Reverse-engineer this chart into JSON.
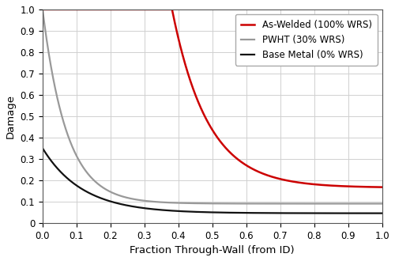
{
  "title": "",
  "xlabel": "Fraction Through-Wall (from ID)",
  "ylabel": "Damage",
  "xlim": [
    0.0,
    1.0
  ],
  "ylim": [
    0.0,
    1.0
  ],
  "xticks": [
    0.0,
    0.1,
    0.2,
    0.3,
    0.4,
    0.5,
    0.6,
    0.7,
    0.8,
    0.9,
    1.0
  ],
  "yticks": [
    0.0,
    0.1,
    0.2,
    0.3,
    0.4,
    0.5,
    0.6,
    0.7,
    0.8,
    0.9,
    1.0
  ],
  "lines": [
    {
      "label": "As-Welded (100% WRS)",
      "color": "#cc0000",
      "linewidth": 1.8,
      "type": "as_welded"
    },
    {
      "label": "PWHT (30% WRS)",
      "color": "#999999",
      "linewidth": 1.6,
      "type": "pwht"
    },
    {
      "label": "Base Metal (0% WRS)",
      "color": "#111111",
      "linewidth": 1.6,
      "type": "base_metal"
    }
  ],
  "as_welded": {
    "flat_cutoff": 0.382,
    "a": 0.83,
    "b": 9.5,
    "c": 0.165
  },
  "pwht": {
    "a": 0.91,
    "b": 14.0,
    "c": 0.09
  },
  "base_metal": {
    "a": 0.305,
    "b": 8.5,
    "c": 0.045
  },
  "grid_color": "#d0d0d0",
  "background_color": "#ffffff",
  "legend_loc": "upper right",
  "legend_fontsize": 8.5,
  "axis_label_fontsize": 9.5,
  "tick_fontsize": 8.5
}
